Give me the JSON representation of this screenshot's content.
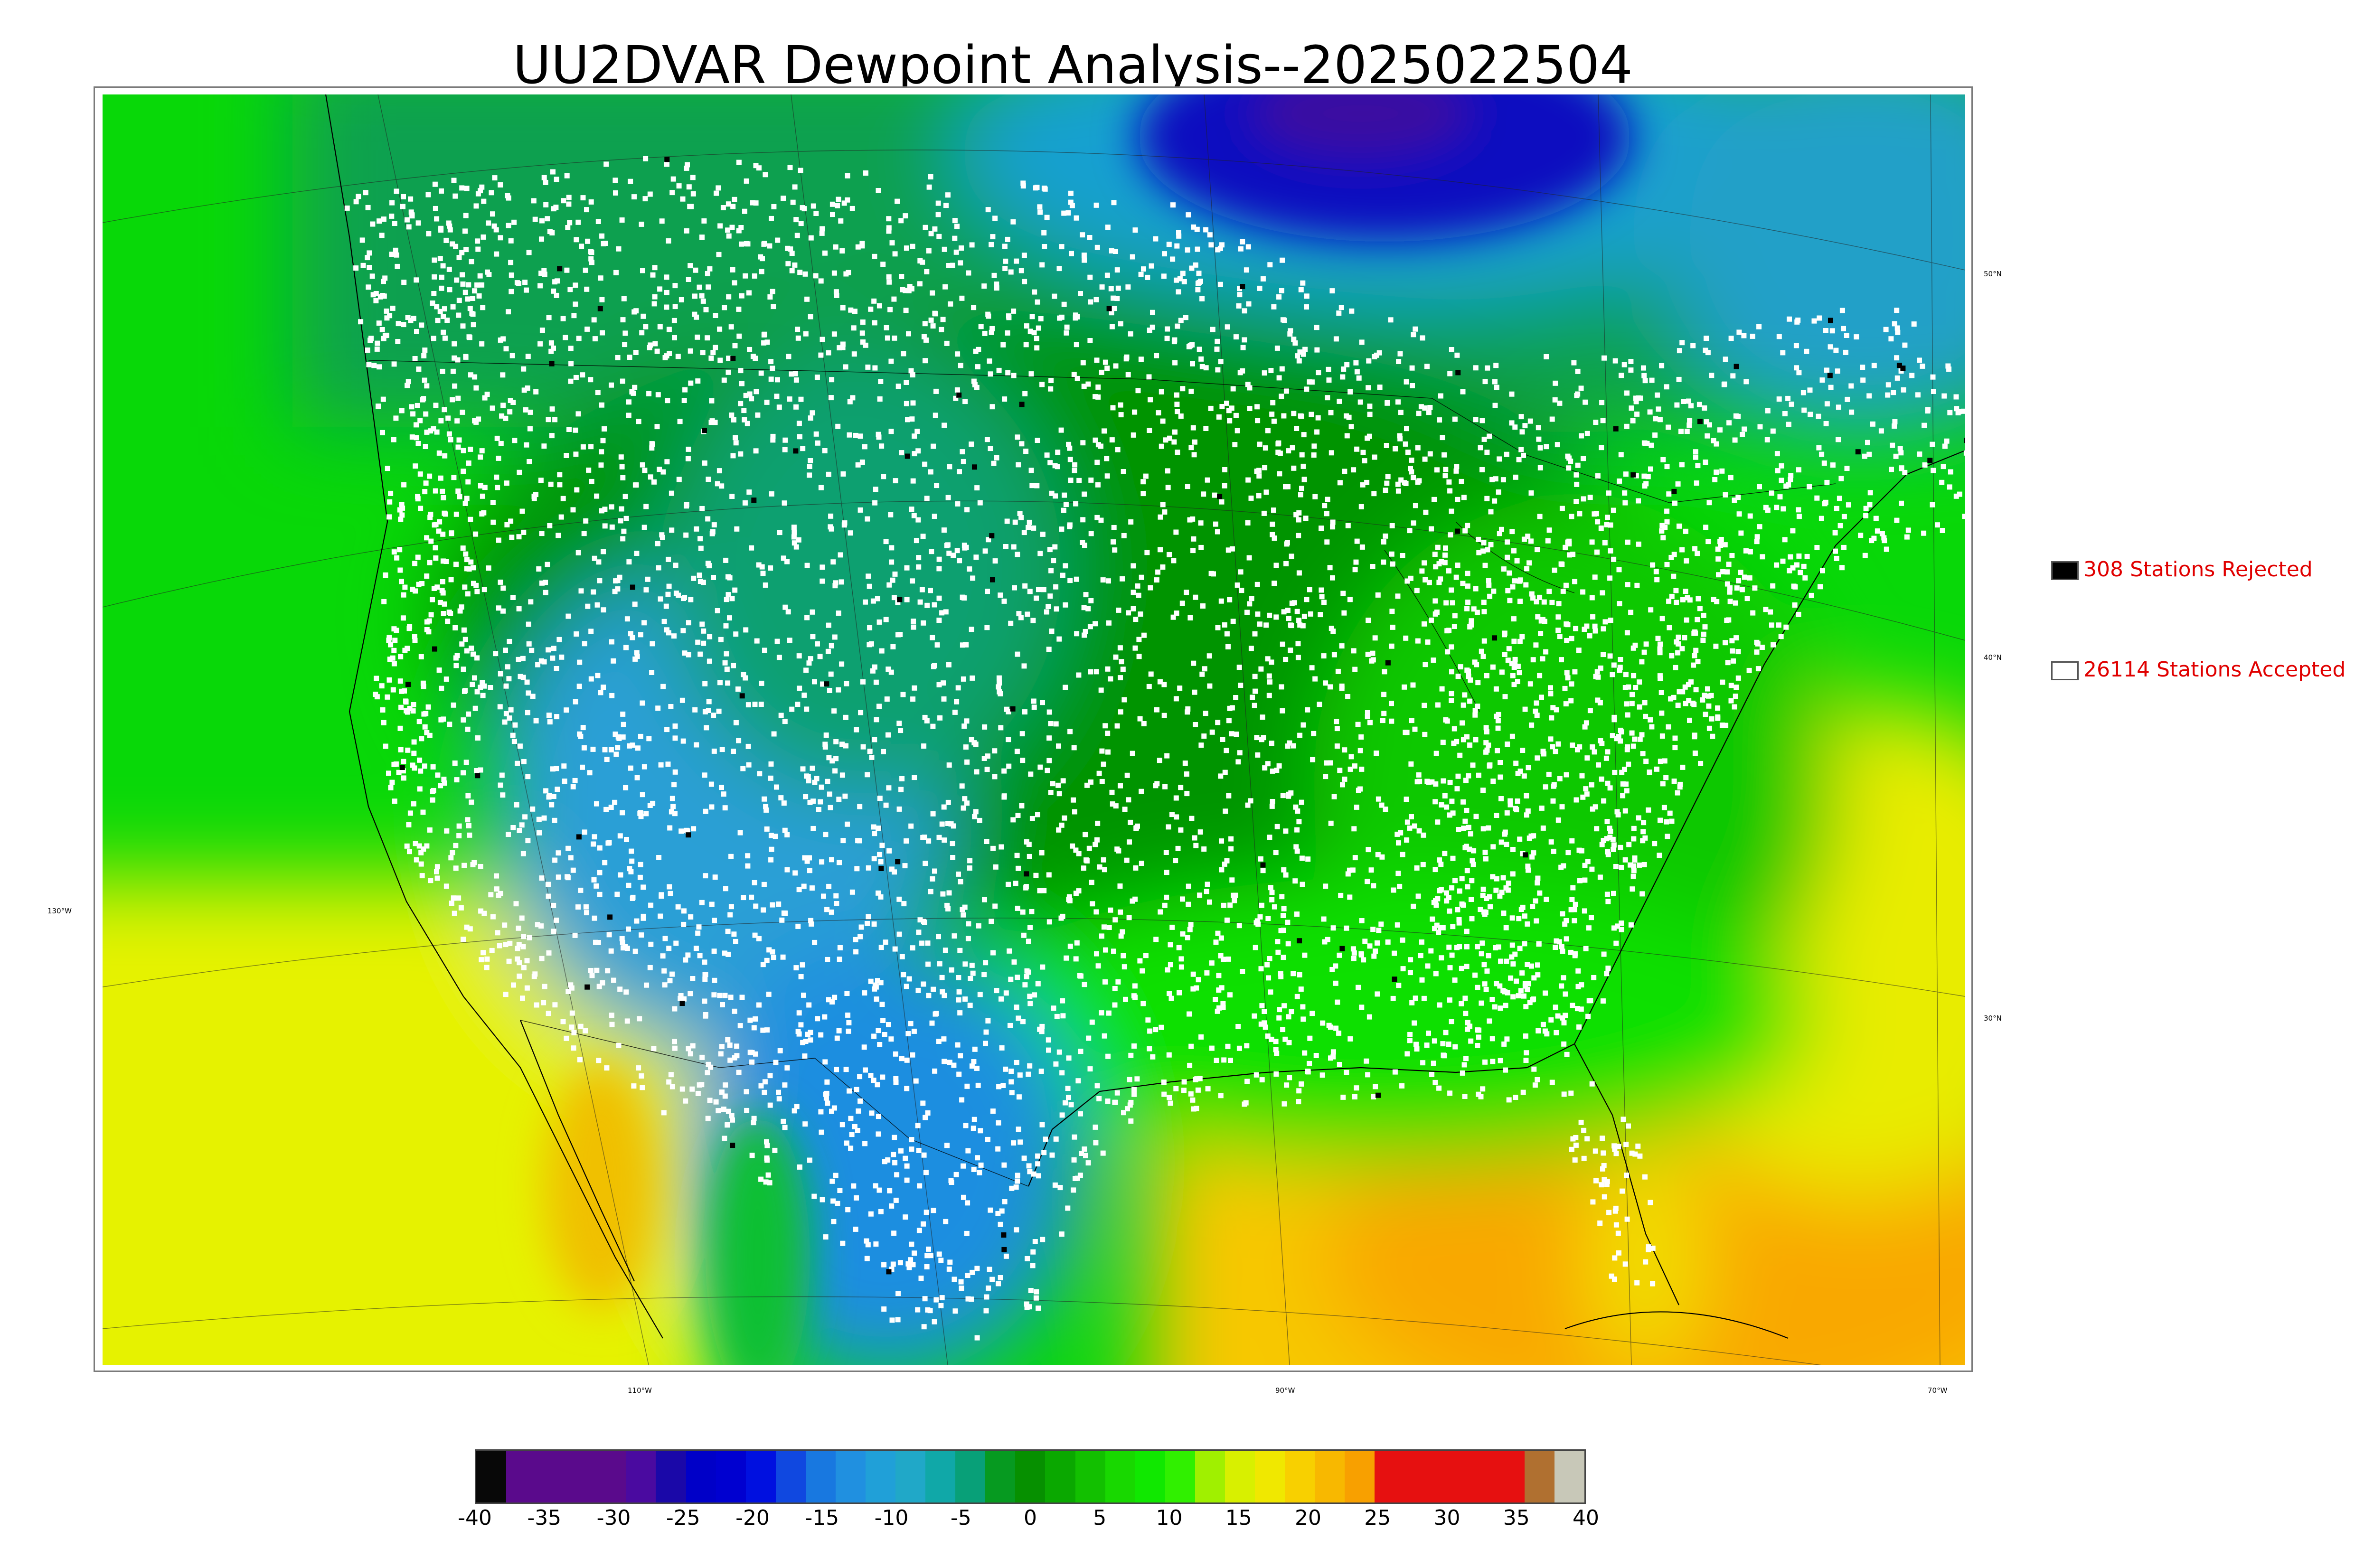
{
  "title": "UU2DVAR Dewpoint Analysis--2025022504",
  "map": {
    "latitude_labels": [
      "50°N",
      "40°N",
      "130°W",
      "30°N"
    ],
    "longitude_labels": [
      "110°W",
      "90°W",
      "70°W"
    ],
    "field_colors": {
      "ocean_west": "#08d808",
      "ocean_southwest": "#e6f200",
      "gulf_atlantic_south": "#f9a800",
      "canada_cold_core": "#2020c8",
      "great_basin_dry": "#2a9fd6",
      "plains": "#069400",
      "station_accepted": "#ffffff",
      "station_rejected": "#000000"
    }
  },
  "legend": {
    "rejected": {
      "label": "308 Stations Rejected",
      "count": 308,
      "swatch_color": "#000000"
    },
    "accepted": {
      "label": "26114 Stations Accepted",
      "count": 26114,
      "swatch_color": "#ffffff"
    }
  },
  "colorbar": {
    "ticks": [
      "-40",
      "-35",
      "-30",
      "-25",
      "-20",
      "-15",
      "-10",
      "-5",
      "0",
      "5",
      "10",
      "15",
      "20",
      "25",
      "30",
      "35",
      "40"
    ],
    "min": -40,
    "max": 40,
    "colors": [
      "#080808",
      "#5a0a8c",
      "#5a0a8c",
      "#5a0a8c",
      "#5a0a8c",
      "#4a0aa0",
      "#1a08a8",
      "#0000c8",
      "#0000d0",
      "#0010e0",
      "#1048e0",
      "#1878e0",
      "#2090e0",
      "#20a0d8",
      "#20a8c8",
      "#10a8a8",
      "#08a078",
      "#069a20",
      "#069000",
      "#0aa800",
      "#12c000",
      "#18d800",
      "#10e800",
      "#30f000",
      "#a0f000",
      "#d8f000",
      "#f0e800",
      "#f8d000",
      "#f8b800",
      "#f8a000",
      "#e61010",
      "#e61010",
      "#e61010",
      "#e61010",
      "#e61010",
      "#b07030",
      "#c8c8b8"
    ]
  }
}
